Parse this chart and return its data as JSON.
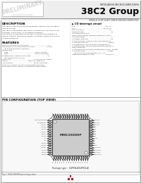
{
  "page_bg": "#ffffff",
  "title_line1": "MITSUBISHI MICROCOMPUTERS",
  "title_line2": "38C2 Group",
  "subtitle": "SINGLE-CHIP 8-BIT CMOS MICROCOMPUTER",
  "preliminary_text": "PRELIMINARY",
  "section_description": "DESCRIPTION",
  "section_features": "FEATURES",
  "section_pin": "PIN CONFIGURATION (TOP VIEW)",
  "chip_label": "M38C2XXXHP",
  "package_type": "Package type :  64P6N-A(64P6Q-A)",
  "fig_note": "Fig. 1  M38C2XXXHP pin configuration",
  "desc_lines": [
    "The 38C2 group is the 8-bit microcomputer based on the 700 family",
    "core technology.",
    "The 38C2 group features 8/16 When-constructed or 16-channel A/D",
    "converter, and a Serial I/O as optional functions.",
    "The various combinations of the 38C2 group include variations of",
    "internal memory size and packaging. For details, references section",
    "on part numbering."
  ],
  "feat_lines": [
    "Basic microcomputer instructions ....................................74",
    "The minimum instruction execution time ..................... 0.39 us",
    "     (at 8 MHz oscillation frequency)",
    "Memory size:",
    "  ROM ..................................................16 to 60 Kbyte",
    "  RAM ..................................................640 to 2048 bytes",
    "Programmable number of interrupts ...............................15",
    "     (extendable to 63, 31, 24)",
    "Multi-clock ...........................................16 sources, 16 outputs",
    "Timers .......................................Base 4-8, Base 4+8",
    "A/D converter ......................................25-35 V functions",
    "Serial I/O: Channel 2 (UART or Clocking/Synchronous)",
    "PWM: Fixed 1 to 8, Flexible 1 connected to 8MFT output"
  ],
  "io_title": "I/O interrupt circuit",
  "io_lines": [
    "Bus .....................................................................VD, VD",
    "Duty ..............................................................VD, VD, xx",
    "Basic oscillation ........................................................ xx",
    "Segment output ........................................................... xx",
    "Clock generating circuit",
    "Power supply monitor function of system oscillation",
    "Oscillation select ........................................................... 2",
    "All external error pins .................................................. xx",
    "At through mode: 4 Kbit/16 K oscillation frequency)",
    "At frequency/Console ............................................1 Kbit/S",
    "At average error: (at 16 MHz oscillation frequency)",
    "All average mode: (at 24/16 MHz oscillation frequency)",
    "Power dissipation:",
    "At through mode: (at 8 MHz oscillation freq: x0=5V) .200mW",
    "At compact mode ..................................................81 mW",
    "     (at 32 kHz oscillation frequency: x0 = 5 V)",
    "Operating temperature range ......................... -20 to 85 C"
  ],
  "left_pin_labels": [
    "P00/AN0/BUZ/PWM0",
    "P01/AN1/BOOT",
    "P02/AN2",
    "P03/AN3",
    "P04/AN4",
    "P05/AN5",
    "P06/AN6",
    "P07/AN7",
    "VSS",
    "VCC",
    "P10/TXD",
    "P11/RXD",
    "P12/SCK",
    "P13/INT0",
    "P14/INT1",
    "P15/INT2"
  ],
  "right_pin_labels": [
    "P60/INT5",
    "P61/INT6",
    "P62/INT7",
    "P63",
    "P64",
    "P65",
    "P66",
    "P67",
    "RESET",
    "X1",
    "X2",
    "XOUT",
    "P70/TA0IN",
    "P71/TA0OUT",
    "P72/TA1IN",
    "P73/TA1OUT"
  ],
  "top_pin_labels": [
    "P20",
    "P21",
    "P22",
    "P23",
    "P24",
    "P25",
    "P26",
    "P27",
    "P30",
    "P31",
    "P32",
    "P33",
    "P34",
    "P35",
    "P36",
    "P37"
  ],
  "bottom_pin_labels": [
    "P40",
    "P41",
    "P42",
    "P43",
    "P44",
    "P45",
    "P46",
    "P47",
    "P50",
    "P51",
    "P52",
    "P53",
    "P54",
    "P55",
    "P56",
    "P57"
  ],
  "chip_color": "#cccccc",
  "chip_border": "#444444",
  "pin_color": "#222222",
  "pin_label_color": "#333333",
  "header_gray": "#dddddd"
}
